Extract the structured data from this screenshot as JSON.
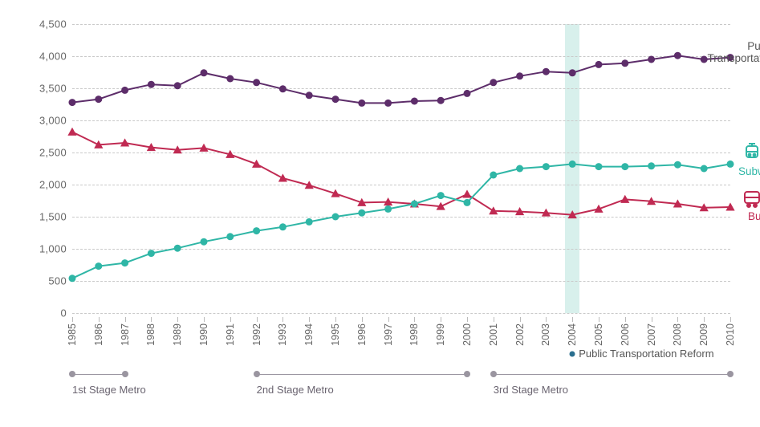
{
  "chart": {
    "type": "line",
    "background_color": "#ffffff",
    "grid_color": "#c9c9c9",
    "grid_dash": "4 4",
    "axis_font_size": 13,
    "ylim": [
      0,
      4500
    ],
    "ytick_step": 500,
    "y_ticks": [
      0,
      500,
      1000,
      1500,
      2000,
      2500,
      3000,
      3500,
      4000,
      4500
    ],
    "y_tick_labels": [
      "0",
      "500",
      "1,000",
      "1,500",
      "2,000",
      "2,500",
      "3,000",
      "3,500",
      "4,000",
      "4,500"
    ],
    "x_categories": [
      "1985",
      "1986",
      "1987",
      "1988",
      "1989",
      "1990",
      "1991",
      "1992",
      "1993",
      "1994",
      "1995",
      "1996",
      "1997",
      "1998",
      "1999",
      "2000",
      "2001",
      "2002",
      "2003",
      "2004",
      "2005",
      "2006",
      "2007",
      "2008",
      "2009",
      "2010"
    ],
    "series": [
      {
        "name": "Public Transportation",
        "label": "Public\nTransportation",
        "color": "#5d2d6a",
        "marker": "circle",
        "marker_size": 6,
        "line_width": 2,
        "values": [
          3280,
          3330,
          3470,
          3560,
          3540,
          3740,
          3650,
          3590,
          3490,
          3390,
          3330,
          3270,
          3270,
          3300,
          3310,
          3420,
          3590,
          3690,
          3760,
          3740,
          3870,
          3890,
          3950,
          4010,
          3950,
          3980
        ]
      },
      {
        "name": "Bus",
        "label": "Bus",
        "color": "#c02a52",
        "marker": "triangle",
        "marker_size": 7,
        "line_width": 2,
        "values": [
          2820,
          2620,
          2650,
          2580,
          2540,
          2570,
          2470,
          2320,
          2100,
          1990,
          1860,
          1720,
          1730,
          1700,
          1660,
          1850,
          1590,
          1580,
          1560,
          1530,
          1620,
          1770,
          1740,
          1700,
          1640,
          1650
        ]
      },
      {
        "name": "Subway",
        "label": "Subway",
        "color": "#2fb6a6",
        "marker": "circle",
        "marker_size": 6,
        "line_width": 2,
        "values": [
          540,
          730,
          780,
          930,
          1010,
          1110,
          1190,
          1280,
          1340,
          1420,
          1500,
          1560,
          1620,
          1700,
          1830,
          1720,
          2150,
          2250,
          2280,
          2320,
          2280,
          2280,
          2290,
          2310,
          2250,
          2320
        ]
      }
    ],
    "highlight": {
      "year": "2004",
      "band_color": "#b8e3dc",
      "label": "Public Transportation Reform",
      "dot_color": "#2a6f8f"
    },
    "stages": [
      {
        "label": "1st Stage Metro",
        "from": "1985",
        "to": "1987"
      },
      {
        "label": "2nd Stage Metro",
        "from": "1992",
        "to": "2000"
      },
      {
        "label": "3rd Stage Metro",
        "from": "2001",
        "to": "2010"
      }
    ],
    "stage_line_color": "#9a95a0",
    "legend_icons": {
      "subway_color": "#2fb6a6",
      "bus_color": "#c02a52"
    }
  }
}
